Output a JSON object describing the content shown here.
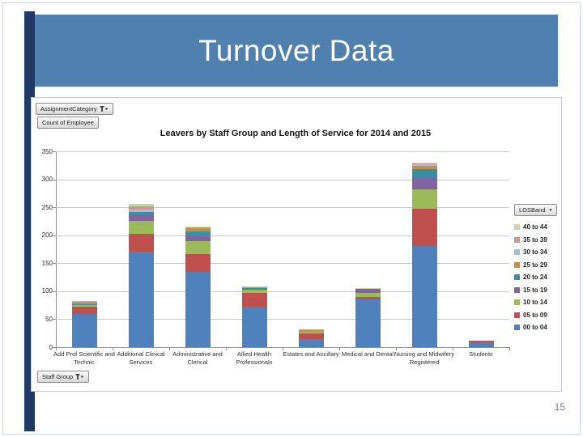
{
  "slide": {
    "title": "Turnover Data",
    "page_number": "15"
  },
  "pivot_fields": {
    "assignment_category_label": "AssignmentCategory",
    "count_label": "Count of Employee",
    "staff_group_label": "Staff Group",
    "los_band_label": "LOSBand"
  },
  "colors": {
    "header_band": "#5081ae",
    "accent_bar": "#203a64",
    "gridline": "#c9c9c9",
    "axis": "#8f8f8f"
  },
  "chart_data": {
    "type": "bar",
    "stacked": true,
    "title": "Leavers by Staff Group and Length of Service for 2014 and 2015",
    "categories": [
      "Add Prof Scientific and Technic",
      "Additional Clinical Services",
      "Administrative and Clerical",
      "Allied Health Professionals",
      "Estates and Ancillary",
      "Medical and Dental",
      "Nursing and Midwifery Registered",
      "Students"
    ],
    "series": [
      {
        "name": "00 to 04",
        "color": "#4f81bd",
        "values": [
          60,
          170,
          135,
          73,
          15,
          85,
          181,
          9
        ]
      },
      {
        "name": "05 to 09",
        "color": "#c0504d",
        "values": [
          13,
          33,
          32,
          24,
          10,
          4,
          66,
          2
        ]
      },
      {
        "name": "10 to 14",
        "color": "#9bbb59",
        "values": [
          2,
          23,
          23,
          5,
          2,
          8,
          35,
          0
        ]
      },
      {
        "name": "15 to 19",
        "color": "#8064a2",
        "values": [
          1,
          10,
          8,
          2,
          0,
          8,
          22,
          0
        ]
      },
      {
        "name": "20 to 24",
        "color": "#3a8ea5",
        "values": [
          1,
          6,
          9,
          2,
          0,
          0,
          14,
          0
        ]
      },
      {
        "name": "25 to 29",
        "color": "#c78f41",
        "values": [
          4,
          0,
          6,
          1,
          4,
          0,
          6,
          0
        ]
      },
      {
        "name": "30 to 34",
        "color": "#a9bcd6",
        "values": [
          1,
          4,
          0,
          1,
          0,
          0,
          4,
          0
        ]
      },
      {
        "name": "35 to 39",
        "color": "#ce9795",
        "values": [
          0,
          5,
          1,
          0,
          1,
          0,
          1,
          0
        ]
      },
      {
        "name": "40 to 44",
        "color": "#c6d6a8",
        "values": [
          0,
          5,
          1,
          1,
          0,
          1,
          1,
          0
        ]
      }
    ],
    "ylim": [
      0,
      350
    ],
    "ytick_step": 50,
    "grid": true,
    "legend_position": "right",
    "legend_order_note": "legend displayed top-to-bottom from 40 to 44 down to 00 to 04"
  }
}
